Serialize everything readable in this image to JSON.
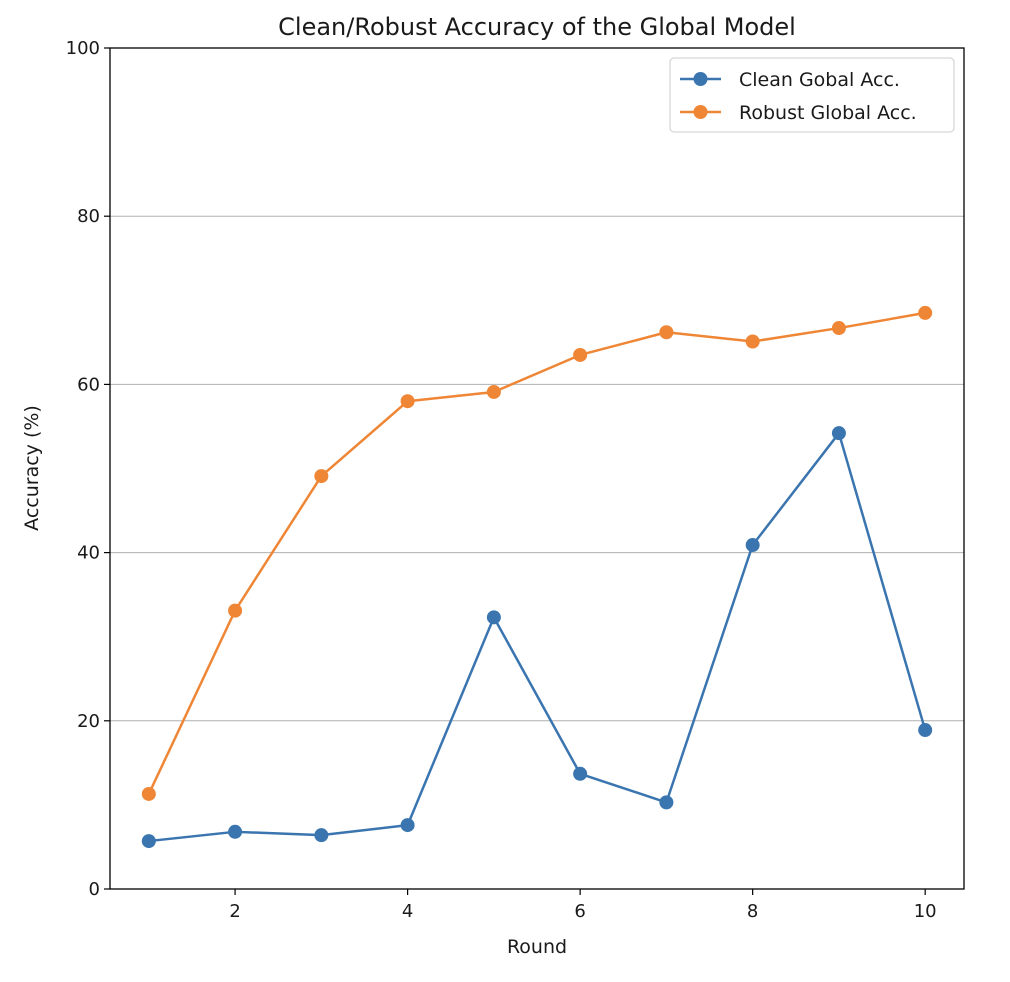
{
  "chart_data": {
    "type": "line",
    "title": "Clean/Robust Accuracy of the Global Model",
    "xlabel": "Round",
    "ylabel": "Accuracy (%)",
    "xlim": [
      0.55,
      10.45
    ],
    "ylim": [
      0,
      100
    ],
    "xticks": [
      2,
      4,
      6,
      8,
      10
    ],
    "yticks": [
      0,
      20,
      40,
      60,
      80,
      100
    ],
    "grid": "horizontal",
    "legend_position": "top-right",
    "x": [
      1,
      2,
      3,
      4,
      5,
      6,
      7,
      8,
      9,
      10
    ],
    "series": [
      {
        "name": "Clean Gobal Acc.",
        "color": "#3a75b0",
        "marker": "circle",
        "values": [
          5.7,
          6.8,
          6.4,
          7.6,
          32.3,
          13.7,
          10.3,
          40.9,
          54.2,
          18.9
        ]
      },
      {
        "name": "Robust Global Acc.",
        "color": "#ef8636",
        "marker": "circle",
        "values": [
          11.3,
          33.1,
          49.1,
          58.0,
          59.1,
          63.5,
          66.2,
          65.1,
          66.7,
          68.5
        ]
      }
    ]
  }
}
